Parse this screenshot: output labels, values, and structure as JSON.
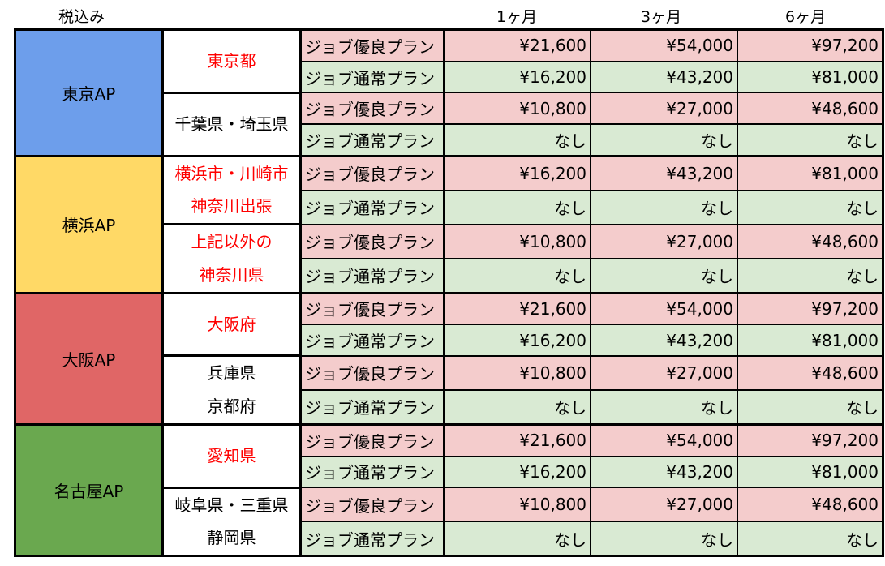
{
  "header": {
    "tax_label": "税込み",
    "columns": [
      "1ヶ月",
      "3ヶ月",
      "6ヶ月"
    ]
  },
  "colors": {
    "tokyo": "#6d9eeb",
    "yokohama": "#ffd966",
    "osaka": "#e06666",
    "nagoya": "#6aa84f",
    "premium_bg": "#f4cccc",
    "normal_bg": "#d9ead3",
    "highlight_text": "#ff0000"
  },
  "groups": [
    {
      "name": "東京AP",
      "color": "#6d9eeb",
      "regions": [
        {
          "lines": [
            "東京都"
          ],
          "red": true,
          "plans": [
            {
              "name": "ジョブ優良プラン",
              "type": "premium",
              "prices": [
                "¥21,600",
                "¥54,000",
                "¥97,200"
              ]
            },
            {
              "name": "ジョブ通常プラン",
              "type": "normal",
              "prices": [
                "¥16,200",
                "¥43,200",
                "¥81,000"
              ]
            }
          ]
        },
        {
          "lines": [
            "千葉県・埼玉県"
          ],
          "red": false,
          "plans": [
            {
              "name": "ジョブ優良プラン",
              "type": "premium",
              "prices": [
                "¥10,800",
                "¥27,000",
                "¥48,600"
              ]
            },
            {
              "name": "ジョブ通常プラン",
              "type": "normal",
              "prices": [
                "なし",
                "なし",
                "なし"
              ]
            }
          ]
        }
      ]
    },
    {
      "name": "横浜AP",
      "color": "#ffd966",
      "regions": [
        {
          "lines": [
            "横浜市・川崎市",
            "神奈川出張"
          ],
          "red": true,
          "plans": [
            {
              "name": "ジョブ優良プラン",
              "type": "premium",
              "prices": [
                "¥16,200",
                "¥43,200",
                "¥81,000"
              ]
            },
            {
              "name": "ジョブ通常プラン",
              "type": "normal",
              "prices": [
                "なし",
                "なし",
                "なし"
              ]
            }
          ]
        },
        {
          "lines": [
            "上記以外の",
            "神奈川県"
          ],
          "red": true,
          "plans": [
            {
              "name": "ジョブ優良プラン",
              "type": "premium",
              "prices": [
                "¥10,800",
                "¥27,000",
                "¥48,600"
              ]
            },
            {
              "name": "ジョブ通常プラン",
              "type": "normal",
              "prices": [
                "なし",
                "なし",
                "なし"
              ]
            }
          ]
        }
      ]
    },
    {
      "name": "大阪AP",
      "color": "#e06666",
      "regions": [
        {
          "lines": [
            "大阪府"
          ],
          "red": true,
          "plans": [
            {
              "name": "ジョブ優良プラン",
              "type": "premium",
              "prices": [
                "¥21,600",
                "¥54,000",
                "¥97,200"
              ]
            },
            {
              "name": "ジョブ通常プラン",
              "type": "normal",
              "prices": [
                "¥16,200",
                "¥43,200",
                "¥81,000"
              ]
            }
          ]
        },
        {
          "lines": [
            "兵庫県",
            "京都府"
          ],
          "red": false,
          "plans": [
            {
              "name": "ジョブ優良プラン",
              "type": "premium",
              "prices": [
                "¥10,800",
                "¥27,000",
                "¥48,600"
              ]
            },
            {
              "name": "ジョブ通常プラン",
              "type": "normal",
              "prices": [
                "なし",
                "なし",
                "なし"
              ]
            }
          ]
        }
      ]
    },
    {
      "name": "名古屋AP",
      "color": "#6aa84f",
      "regions": [
        {
          "lines": [
            "愛知県"
          ],
          "red": true,
          "plans": [
            {
              "name": "ジョブ優良プラン",
              "type": "premium",
              "prices": [
                "¥21,600",
                "¥54,000",
                "¥97,200"
              ]
            },
            {
              "name": "ジョブ通常プラン",
              "type": "normal",
              "prices": [
                "¥16,200",
                "¥43,200",
                "¥81,000"
              ]
            }
          ]
        },
        {
          "lines": [
            "岐阜県・三重県",
            "静岡県"
          ],
          "red": false,
          "plans": [
            {
              "name": "ジョブ優良プラン",
              "type": "premium",
              "prices": [
                "¥10,800",
                "¥27,000",
                "¥48,600"
              ]
            },
            {
              "name": "ジョブ通常プラン",
              "type": "normal",
              "prices": [
                "なし",
                "なし",
                "なし"
              ]
            }
          ]
        }
      ]
    }
  ]
}
